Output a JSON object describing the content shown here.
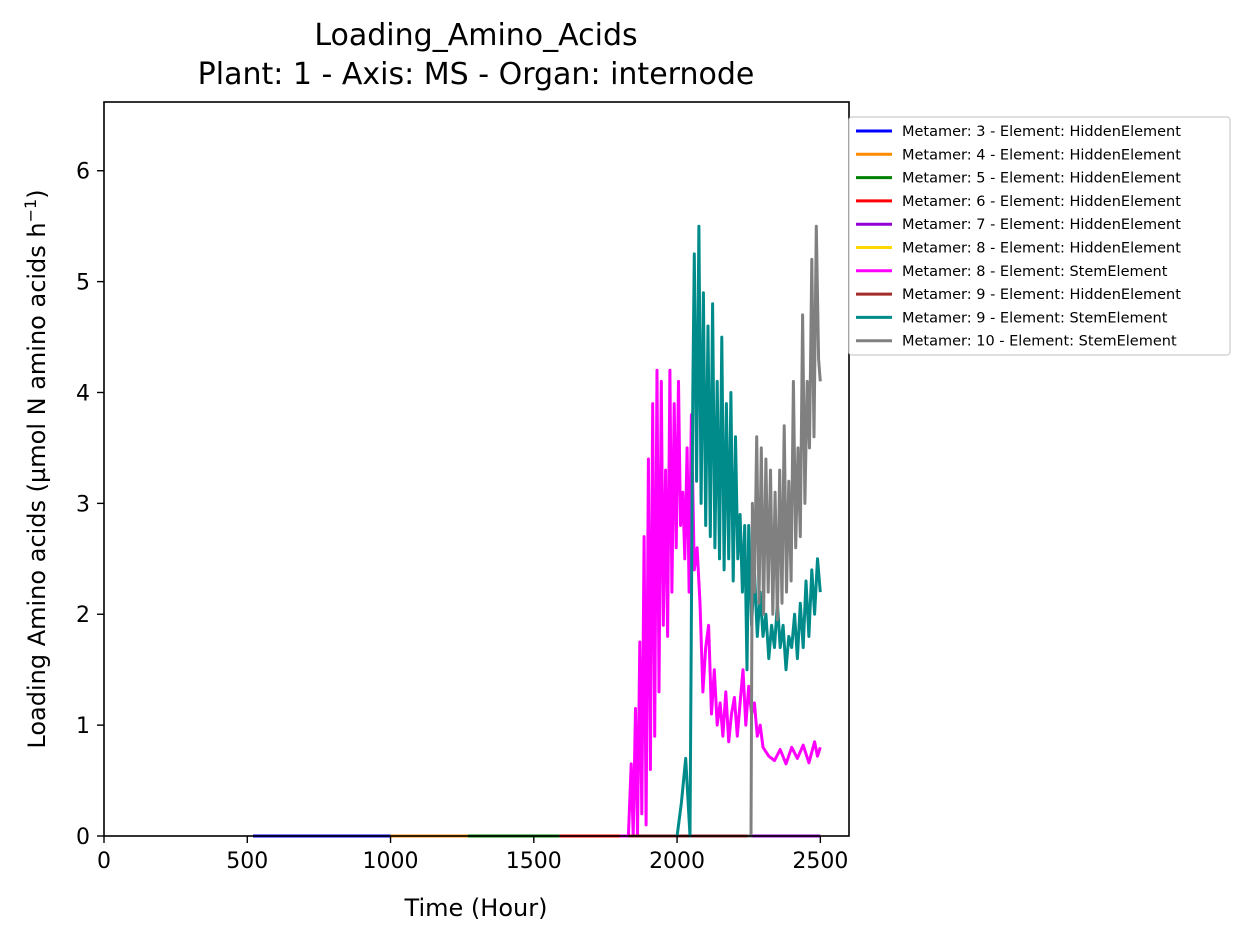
{
  "chart_data": {
    "type": "line",
    "title": "Loading_Amino_Acids",
    "subtitle": "Plant: 1 - Axis: MS - Organ: internode",
    "xlabel": "Time (Hour)",
    "ylabel": "Loading Amino acids (µmol N amino acids h",
    "ylabel_sup": "−1",
    "ylabel_end": ")",
    "xlim": [
      0,
      2600
    ],
    "ylim": [
      0,
      6.62
    ],
    "xticks": [
      0,
      500,
      1000,
      1500,
      2000,
      2500
    ],
    "yticks": [
      0,
      1,
      2,
      3,
      4,
      5,
      6
    ],
    "legend_position": "outside-upper-right",
    "series": [
      {
        "name": "Metamer: 3 - Element: HiddenElement",
        "color": "#0000ff",
        "x": [
          520,
          1000
        ],
        "y": [
          0,
          0
        ]
      },
      {
        "name": "Metamer: 4 - Element: HiddenElement",
        "color": "#ff8c00",
        "x": [
          1000,
          1270
        ],
        "y": [
          0,
          0
        ]
      },
      {
        "name": "Metamer: 5 - Element: HiddenElement",
        "color": "#008000",
        "x": [
          1270,
          1590
        ],
        "y": [
          0,
          0
        ]
      },
      {
        "name": "Metamer: 6 - Element: HiddenElement",
        "color": "#ff0000",
        "x": [
          1590,
          1830
        ],
        "y": [
          0,
          0
        ]
      },
      {
        "name": "Metamer: 7 - Element: HiddenElement",
        "color": "#9400d3",
        "x": [
          1830,
          2500
        ],
        "y": [
          0,
          0
        ]
      },
      {
        "name": "Metamer: 8 - Element: HiddenElement",
        "color": "#ffd700",
        "x": [],
        "y": []
      },
      {
        "name": "Metamer: 8 - Element: StemElement",
        "color": "#ff00ff",
        "x": [
          1800,
          1830,
          1840,
          1847,
          1855,
          1862,
          1870,
          1877,
          1885,
          1892,
          1900,
          1907,
          1915,
          1922,
          1930,
          1937,
          1945,
          1952,
          1960,
          1967,
          1975,
          1982,
          1990,
          1997,
          2005,
          2012,
          2020,
          2027,
          2035,
          2042,
          2050,
          2060,
          2070,
          2080,
          2090,
          2100,
          2110,
          2120,
          2130,
          2140,
          2150,
          2160,
          2170,
          2180,
          2190,
          2200,
          2210,
          2220,
          2230,
          2240,
          2250,
          2260,
          2270,
          2280,
          2290,
          2300,
          2320,
          2340,
          2360,
          2380,
          2400,
          2420,
          2440,
          2460,
          2480,
          2490,
          2500
        ],
        "y": [
          0,
          0,
          0.65,
          0,
          1.15,
          0,
          1.75,
          0.2,
          2.7,
          0.1,
          3.4,
          0.6,
          3.9,
          0.9,
          4.2,
          1.3,
          4.1,
          1.9,
          3.3,
          1.8,
          4.2,
          2.2,
          3.9,
          2.6,
          4.1,
          2.8,
          3.1,
          2.5,
          3.5,
          2.2,
          3.8,
          2.4,
          2.6,
          2.1,
          1.3,
          1.7,
          1.9,
          1.1,
          1.5,
          1.0,
          1.2,
          0.9,
          1.3,
          0.85,
          1.1,
          1.25,
          0.9,
          1.2,
          1.5,
          1.0,
          1.35,
          1.1,
          1.2,
          0.9,
          1.0,
          0.8,
          0.72,
          0.68,
          0.78,
          0.65,
          0.8,
          0.7,
          0.82,
          0.66,
          0.85,
          0.72,
          0.8
        ]
      },
      {
        "name": "Metamer: 9 - Element: HiddenElement",
        "color": "#a52a2a",
        "x": [
          1830,
          2250
        ],
        "y": [
          0,
          0
        ]
      },
      {
        "name": "Metamer: 9 - Element: StemElement",
        "color": "#008b8b",
        "x": [
          2000,
          2015,
          2030,
          2045,
          2055,
          2060,
          2068,
          2076,
          2084,
          2092,
          2100,
          2108,
          2116,
          2124,
          2132,
          2140,
          2148,
          2156,
          2164,
          2172,
          2180,
          2188,
          2196,
          2204,
          2212,
          2220,
          2228,
          2236,
          2244,
          2250,
          2260,
          2270,
          2280,
          2290,
          2300,
          2310,
          2320,
          2330,
          2340,
          2350,
          2360,
          2370,
          2380,
          2390,
          2400,
          2410,
          2420,
          2430,
          2440,
          2450,
          2460,
          2470,
          2480,
          2490,
          2500
        ],
        "y": [
          0,
          0.3,
          0.7,
          0,
          4.0,
          5.25,
          3.2,
          5.5,
          3.0,
          4.9,
          2.8,
          4.6,
          2.7,
          4.8,
          2.6,
          4.1,
          2.5,
          4.5,
          2.4,
          3.9,
          2.5,
          4.0,
          2.3,
          3.6,
          2.5,
          2.9,
          2.2,
          2.8,
          1.5,
          2.8,
          1.9,
          2.4,
          1.8,
          2.2,
          1.8,
          2.0,
          1.6,
          1.9,
          1.7,
          2.1,
          1.7,
          1.9,
          1.5,
          1.8,
          1.7,
          2.0,
          1.6,
          2.1,
          1.7,
          2.3,
          1.8,
          2.4,
          2.0,
          2.5,
          2.2
        ]
      },
      {
        "name": "Metamer: 10 - Element: StemElement",
        "color": "#808080",
        "x": [
          2245,
          2258,
          2263,
          2270,
          2278,
          2286,
          2294,
          2302,
          2310,
          2318,
          2326,
          2334,
          2342,
          2350,
          2358,
          2366,
          2374,
          2382,
          2390,
          2398,
          2406,
          2414,
          2422,
          2430,
          2438,
          2446,
          2454,
          2462,
          2470,
          2478,
          2486,
          2494,
          2500
        ],
        "y": [
          0,
          0,
          3.0,
          2.2,
          3.6,
          2.1,
          3.5,
          2.0,
          3.4,
          2.2,
          3.3,
          2.0,
          3.1,
          1.95,
          3.3,
          2.1,
          3.7,
          2.2,
          3.2,
          2.3,
          4.1,
          2.6,
          3.5,
          2.7,
          4.7,
          3.0,
          4.1,
          3.5,
          5.2,
          3.6,
          5.5,
          4.3,
          4.1
        ]
      }
    ]
  }
}
